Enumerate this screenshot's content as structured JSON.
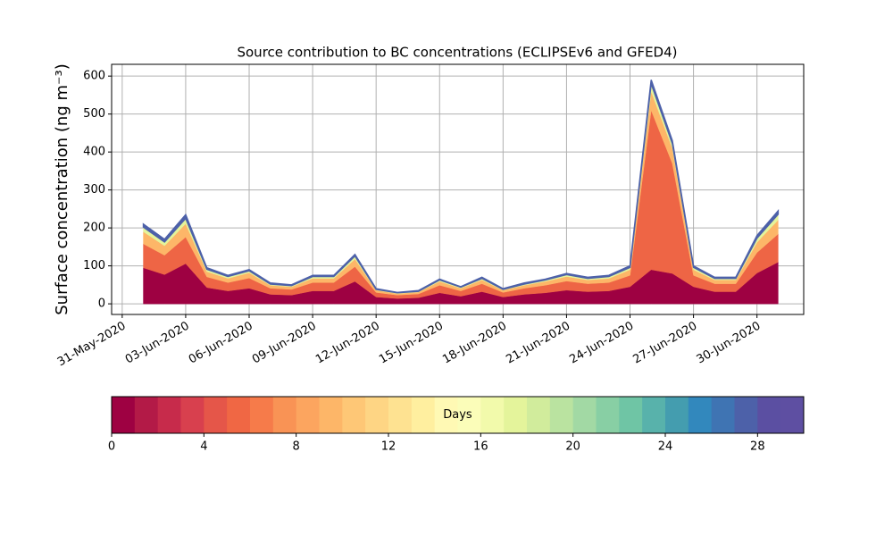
{
  "chart_data": {
    "type": "stacked_area",
    "title": "Source contribution to BC concentrations (ECLIPSEv6 and GFED4)",
    "ylabel": "Surface concentration (ng m⁻³)",
    "x": [
      "2020-06-01",
      "2020-06-02",
      "2020-06-03",
      "2020-06-04",
      "2020-06-05",
      "2020-06-06",
      "2020-06-07",
      "2020-06-08",
      "2020-06-09",
      "2020-06-10",
      "2020-06-11",
      "2020-06-12",
      "2020-06-13",
      "2020-06-14",
      "2020-06-15",
      "2020-06-16",
      "2020-06-17",
      "2020-06-18",
      "2020-06-19",
      "2020-06-20",
      "2020-06-21",
      "2020-06-22",
      "2020-06-23",
      "2020-06-24",
      "2020-06-25",
      "2020-06-26",
      "2020-06-27",
      "2020-06-28",
      "2020-06-29",
      "2020-06-30",
      "2020-07-01"
    ],
    "series": [
      {
        "color": "#9e0142",
        "values": [
          95,
          77,
          106,
          43,
          34,
          41,
          25,
          23,
          34,
          34,
          59,
          18,
          14,
          16,
          29,
          20,
          32,
          18,
          25,
          29,
          36,
          32,
          34,
          45,
          90,
          80,
          45,
          32,
          32,
          81,
          110
        ]
      },
      {
        "color": "#ee6545",
        "values": [
          63,
          51,
          70,
          28,
          22,
          27,
          16,
          15,
          22,
          22,
          39,
          12,
          9,
          10,
          20,
          14,
          21,
          12,
          16,
          20,
          24,
          21,
          22,
          30,
          420,
          290,
          30,
          21,
          21,
          54,
          74
        ]
      },
      {
        "color": "#fdb668",
        "values": [
          32,
          25,
          35,
          14,
          11,
          14,
          8,
          7,
          11,
          11,
          20,
          6,
          4,
          5,
          10,
          7,
          10,
          6,
          8,
          10,
          12,
          10,
          11,
          15,
          50,
          40,
          15,
          10,
          10,
          27,
          37
        ]
      },
      {
        "color": "#e4f49b",
        "values": [
          12,
          10,
          14,
          6,
          5,
          5,
          3,
          3,
          5,
          5,
          8,
          2,
          2,
          2,
          4,
          3,
          4,
          2,
          3,
          4,
          5,
          4,
          5,
          6,
          20,
          12,
          6,
          4,
          4,
          11,
          15
        ]
      },
      {
        "color": "#4d61a9",
        "values": [
          8,
          7,
          10,
          4,
          3,
          3,
          3,
          2,
          3,
          3,
          4,
          2,
          1,
          2,
          2,
          1,
          3,
          2,
          3,
          2,
          3,
          3,
          3,
          4,
          10,
          8,
          4,
          3,
          3,
          7,
          9
        ]
      }
    ],
    "xlim": [
      "2020-05-30T12:00",
      "2020-07-02T05:00"
    ],
    "xticks": [
      {
        "value": "2020-05-31",
        "label": "31-May-2020"
      },
      {
        "value": "2020-06-03",
        "label": "03-Jun-2020"
      },
      {
        "value": "2020-06-06",
        "label": "06-Jun-2020"
      },
      {
        "value": "2020-06-09",
        "label": "09-Jun-2020"
      },
      {
        "value": "2020-06-12",
        "label": "12-Jun-2020"
      },
      {
        "value": "2020-06-15",
        "label": "15-Jun-2020"
      },
      {
        "value": "2020-06-18",
        "label": "18-Jun-2020"
      },
      {
        "value": "2020-06-21",
        "label": "21-Jun-2020"
      },
      {
        "value": "2020-06-24",
        "label": "24-Jun-2020"
      },
      {
        "value": "2020-06-27",
        "label": "27-Jun-2020"
      },
      {
        "value": "2020-06-30",
        "label": "30-Jun-2020"
      }
    ],
    "ylim": [
      -28,
      631
    ],
    "yticks": [
      0,
      100,
      200,
      300,
      400,
      500,
      600
    ],
    "grid": true,
    "colorbar": {
      "label": "Days",
      "lim": [
        0,
        30
      ],
      "ticks": [
        0,
        4,
        8,
        12,
        16,
        20,
        24,
        28
      ],
      "colors": [
        "#9e0142",
        "#b31a47",
        "#c72b4b",
        "#d8404e",
        "#e55649",
        "#f06744",
        "#f67b4a",
        "#f99355",
        "#fca55f",
        "#fdb668",
        "#fec776",
        "#fed584",
        "#fee291",
        "#ffef9f",
        "#fff9b4",
        "#fbfdb9",
        "#f2faab",
        "#e4f49b",
        "#d1ec9c",
        "#bae3a0",
        "#a2d9a4",
        "#88cfa4",
        "#6fc5a5",
        "#58b2ab",
        "#449daf",
        "#3288bd",
        "#3f74b3",
        "#4d61a9",
        "#5b4fa2",
        "#5e4fa2"
      ]
    }
  }
}
